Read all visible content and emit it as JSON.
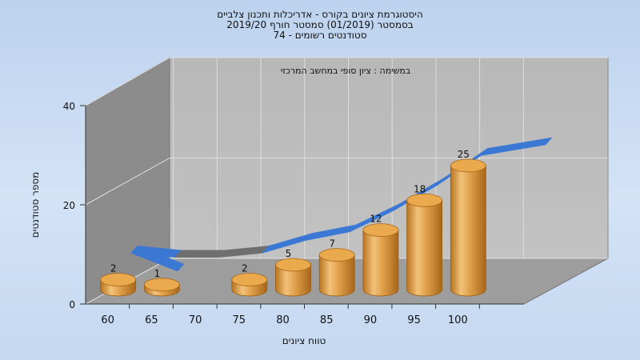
{
  "chart_data": {
    "type": "bar",
    "title_lines": [
      "היסטוגרמת ציונים בקורס - אדריכלות ותכנון צלביים",
      "בסמסטר  (01/2019)  סמסטר חורף 2019/20",
      "74 - סטודנטים רשומים"
    ],
    "subtitle": "במשימה : ציון סופי במחשב המרכזי",
    "xlabel": "טווח ציונים",
    "ylabel": "מספר סטודנטים",
    "categories": [
      "60",
      "65",
      "70",
      "75",
      "80",
      "85",
      "90",
      "95",
      "100"
    ],
    "values": [
      2,
      1,
      null,
      2,
      5,
      7,
      12,
      18,
      25
    ],
    "ylim": [
      0,
      40
    ],
    "y_ticks": [
      "0",
      "20",
      "40"
    ],
    "colors": {
      "bar": "#e0a04a",
      "trend_line": "#3a78d4"
    }
  }
}
